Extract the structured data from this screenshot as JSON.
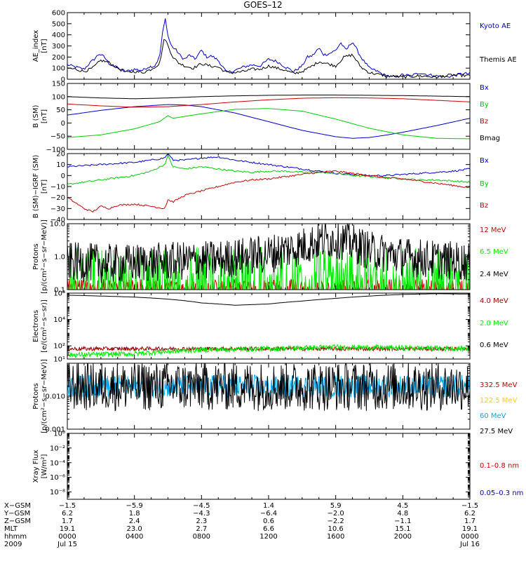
{
  "title": "GOES–12",
  "chart_data": [
    {
      "type": "line",
      "panel": "ae",
      "ylabel": [
        "AE_index",
        "[nT]"
      ],
      "ylim": [
        0,
        600
      ],
      "yscale": "linear",
      "yticks": [
        0,
        100,
        200,
        300,
        400,
        500,
        600
      ],
      "ytick_labels": [
        "0",
        "100",
        "200",
        "300",
        "400",
        "500",
        "600"
      ],
      "xlim_hours": [
        0,
        24
      ],
      "series": [
        {
          "name": "Kyoto AE",
          "color": "#0000cc",
          "x": [
            0,
            0.5,
            1,
            1.3,
            1.6,
            1.9,
            2.2,
            2.5,
            3.0,
            3.5,
            4.0,
            4.5,
            4.8,
            5.2,
            5.5,
            5.7,
            5.85,
            6.0,
            6.2,
            6.5,
            6.8,
            7.0,
            7.3,
            7.6,
            8.0,
            8.3,
            8.6,
            9.0,
            9.5,
            10.0,
            10.5,
            11.0,
            11.5,
            12.0,
            12.5,
            13.0,
            13.5,
            14.0,
            14.3,
            14.6,
            15.0,
            15.3,
            15.6,
            16.0,
            16.3,
            16.6,
            17.0,
            17.5,
            18.0,
            18.5,
            19.0,
            19.5,
            20.0,
            20.5,
            21.0,
            21.5,
            22.0,
            22.5,
            23.0,
            23.5,
            24.0
          ],
          "y": [
            130,
            110,
            90,
            140,
            180,
            230,
            200,
            140,
            100,
            70,
            90,
            80,
            110,
            120,
            200,
            440,
            550,
            390,
            300,
            260,
            200,
            180,
            220,
            180,
            260,
            200,
            210,
            170,
            60,
            80,
            110,
            130,
            120,
            180,
            160,
            110,
            70,
            120,
            200,
            210,
            280,
            220,
            230,
            260,
            330,
            260,
            340,
            200,
            100,
            70,
            30,
            20,
            40,
            30,
            60,
            40,
            30,
            20,
            30,
            50,
            50
          ]
        },
        {
          "name": "Themis AE",
          "color": "#000000",
          "x": [
            0,
            0.5,
            1,
            1.5,
            2.0,
            2.5,
            3.0,
            3.5,
            4.0,
            4.5,
            5.0,
            5.5,
            5.8,
            6.0,
            6.3,
            6.6,
            7.0,
            7.5,
            8.0,
            8.5,
            9.0,
            9.5,
            10.0,
            10.5,
            11.0,
            11.5,
            12.0,
            12.5,
            13.0,
            13.5,
            14.0,
            14.5,
            15.0,
            15.5,
            16.0,
            16.5,
            17.0,
            17.5,
            18.0,
            19.0,
            20.0,
            21.0,
            22.0,
            23.0,
            24.0
          ],
          "y": [
            100,
            90,
            70,
            100,
            170,
            150,
            100,
            60,
            70,
            60,
            90,
            140,
            380,
            300,
            200,
            150,
            120,
            100,
            140,
            120,
            110,
            60,
            60,
            70,
            90,
            90,
            120,
            100,
            80,
            50,
            70,
            110,
            160,
            140,
            120,
            200,
            220,
            110,
            60,
            30,
            20,
            30,
            20,
            40,
            30
          ]
        }
      ]
    },
    {
      "type": "line",
      "panel": "bfield",
      "ylabel": [
        "B (SM)",
        "[nT]"
      ],
      "ylim": [
        -100,
        150
      ],
      "yscale": "linear",
      "yticks": [
        -100,
        -50,
        0,
        50,
        100,
        150
      ],
      "ytick_labels": [
        "−100",
        "−50",
        "0",
        "50",
        "100",
        "150"
      ],
      "xlim_hours": [
        0,
        24
      ],
      "series": [
        {
          "name": "Bx",
          "color": "#0000cc",
          "x": [
            0,
            2,
            4,
            6,
            7,
            8,
            10,
            12,
            14,
            16,
            17,
            18,
            19,
            20,
            22,
            24
          ],
          "y": [
            30,
            48,
            62,
            70,
            68,
            62,
            38,
            5,
            -28,
            -52,
            -58,
            -55,
            -46,
            -35,
            -10,
            18
          ]
        },
        {
          "name": "By",
          "color": "#00cc00",
          "x": [
            0,
            2,
            4,
            5.5,
            6,
            6.3,
            7,
            8,
            10,
            12,
            14,
            16,
            18,
            20,
            22,
            24
          ],
          "y": [
            -55,
            -45,
            -22,
            5,
            28,
            18,
            25,
            35,
            52,
            55,
            45,
            15,
            -20,
            -45,
            -58,
            -60
          ]
        },
        {
          "name": "Bz",
          "color": "#cc0000",
          "x": [
            0,
            2,
            4,
            6,
            8,
            10,
            12,
            14,
            16,
            18,
            20,
            22,
            24
          ],
          "y": [
            72,
            65,
            60,
            62,
            70,
            80,
            88,
            94,
            96,
            95,
            92,
            86,
            80
          ]
        },
        {
          "name": "Bmag",
          "color": "#000000",
          "x": [
            0,
            2,
            4,
            6,
            8,
            10,
            12,
            14,
            16,
            18,
            20,
            22,
            24
          ],
          "y": [
            100,
            95,
            92,
            95,
            100,
            103,
            105,
            106,
            106,
            105,
            104,
            102,
            100
          ]
        }
      ]
    },
    {
      "type": "line",
      "panel": "bresid",
      "ylabel": [
        "B (SM)−IGRF (SM)",
        "[nT]"
      ],
      "ylim": [
        -40,
        20
      ],
      "yscale": "linear",
      "yticks": [
        -40,
        -30,
        -20,
        -10,
        0,
        10,
        20
      ],
      "ytick_labels": [
        "−40",
        "−30",
        "−20",
        "−10",
        "0",
        "10",
        "20"
      ],
      "xlim_hours": [
        0,
        24
      ],
      "series": [
        {
          "name": "Bx",
          "color": "#0000cc",
          "x": [
            0,
            1,
            2,
            3,
            4,
            5,
            5.8,
            6.0,
            6.3,
            7,
            8,
            9,
            10,
            11,
            12,
            13,
            14,
            15,
            16,
            17,
            18,
            19,
            20,
            21,
            22,
            23,
            24
          ],
          "y": [
            8,
            9,
            10,
            11,
            12,
            14,
            16,
            20,
            14,
            14,
            16,
            17,
            14,
            12,
            10,
            8,
            6,
            4,
            2,
            1,
            0,
            0,
            1,
            2,
            3,
            4,
            6
          ]
        },
        {
          "name": "By",
          "color": "#00cc00",
          "x": [
            0,
            1,
            2,
            3,
            4,
            5,
            5.8,
            6.0,
            6.3,
            7,
            8,
            9,
            10,
            11,
            12,
            13,
            14,
            15,
            16,
            17,
            18,
            19,
            20,
            21,
            22,
            23,
            24
          ],
          "y": [
            -8,
            -6,
            -4,
            -2,
            0,
            4,
            10,
            18,
            8,
            6,
            8,
            6,
            4,
            3,
            4,
            4,
            3,
            3,
            2,
            0,
            -1,
            -2,
            -3,
            -4,
            -4,
            -5,
            -6
          ]
        },
        {
          "name": "Bz",
          "color": "#cc0000",
          "x": [
            0,
            0.5,
            1,
            1.5,
            2,
            2.5,
            3,
            4,
            5,
            5.8,
            6.0,
            6.3,
            7,
            8,
            9,
            10,
            11,
            12,
            13,
            14,
            15,
            16,
            17,
            18,
            19,
            20,
            21,
            22,
            23,
            24
          ],
          "y": [
            -20,
            -25,
            -30,
            -33,
            -28,
            -30,
            -27,
            -26,
            -28,
            -30,
            -22,
            -24,
            -18,
            -14,
            -10,
            -6,
            -4,
            -3,
            -1,
            1,
            3,
            4,
            2,
            0,
            -2,
            -3,
            -5,
            -7,
            -9,
            -11
          ]
        }
      ]
    },
    {
      "type": "line",
      "panel": "protons1",
      "ylabel": [
        "Protons",
        "[p/(cm²−s−sr−MeV)]"
      ],
      "ylim": [
        0.1,
        10
      ],
      "yscale": "log",
      "yticks": [
        0.1,
        1.0,
        10.0
      ],
      "ytick_labels": [
        "0.1",
        "1.0",
        "10.0"
      ],
      "xlim_hours": [
        0,
        24
      ],
      "series": [
        {
          "name": "12 MeV",
          "color": "#cc0000",
          "level": 0.12,
          "spread": 0.12,
          "noise": "spiky"
        },
        {
          "name": "6.5 MeV",
          "color": "#00ee00",
          "level": 0.2,
          "spread": 0.5,
          "noise": "spiky"
        },
        {
          "name": "2.4 MeV",
          "color": "#000000",
          "level": 0.8,
          "spread": 0.6,
          "noise": "band",
          "trend_x": [
            0,
            3,
            6,
            9,
            12,
            14,
            15,
            16,
            17,
            18,
            20,
            22,
            24
          ],
          "trend_y": [
            0.7,
            0.6,
            0.7,
            0.8,
            1.2,
            2.0,
            3.0,
            3.5,
            2.5,
            1.5,
            1.0,
            0.8,
            0.7
          ]
        }
      ]
    },
    {
      "type": "line",
      "panel": "electrons",
      "ylabel": [
        "Electrons",
        "[e/(cm²−s−sr)]"
      ],
      "ylim": [
        10,
        1000000
      ],
      "yscale": "log",
      "yticks": [
        10,
        100,
        10000,
        1000000
      ],
      "ytick_labels": [
        "10¹",
        "10²",
        "10⁴",
        "10⁶"
      ],
      "xlim_hours": [
        0,
        24
      ],
      "series": [
        {
          "name": "4.0 MeV",
          "color": "#990000",
          "level": 60,
          "spread": 0.15,
          "noise": "band"
        },
        {
          "name": "2.0 MeV",
          "color": "#00ee00",
          "level": 50,
          "spread": 0.2,
          "noise": "band",
          "trend_x": [
            0,
            4,
            8,
            12,
            16,
            20,
            24
          ],
          "trend_y": [
            20,
            25,
            50,
            60,
            80,
            70,
            60
          ]
        },
        {
          "name": "0.6 MeV",
          "color": "#000000",
          "x": [
            0,
            2,
            4,
            6,
            8,
            10,
            12,
            14,
            16,
            18,
            20,
            22,
            24
          ],
          "y": [
            700000,
            600000,
            500000,
            350000,
            180000,
            120000,
            150000,
            250000,
            400000,
            600000,
            800000,
            900000,
            850000
          ]
        }
      ]
    },
    {
      "type": "line",
      "panel": "protons2",
      "ylabel": [
        "Protons",
        "[p/(cm²−s−sr−MeV)]"
      ],
      "ylim": [
        0.001,
        0.1
      ],
      "yscale": "log",
      "yticks": [
        0.001,
        0.01,
        0.1
      ],
      "ytick_labels": [
        "0.001",
        "0.010",
        ""
      ],
      "xlim_hours": [
        0,
        24
      ],
      "series": [
        {
          "name": "332.5 MeV",
          "color": "#cc0000",
          "level": null
        },
        {
          "name": "122.5 MeV",
          "color": "#ffcc00",
          "level": null
        },
        {
          "name": "60 MeV",
          "color": "#00aaee",
          "level": 0.02,
          "spread": 0.35,
          "noise": "band"
        },
        {
          "name": "27.5 MeV",
          "color": "#000000",
          "level": 0.02,
          "spread": 0.75,
          "noise": "band"
        }
      ]
    },
    {
      "type": "line",
      "panel": "xray",
      "ylabel": [
        "Xray Flux",
        "[W/m²]"
      ],
      "ylim": [
        1e-09,
        1
      ],
      "yscale": "log",
      "yticks": [
        1e-08,
        1e-06,
        0.0001,
        0.01,
        1
      ],
      "ytick_labels": [
        "10⁻⁸",
        "10⁻⁶",
        "10⁻⁴",
        "10⁻²",
        "10⁰"
      ],
      "xlim_hours": [
        0,
        24
      ],
      "series": [
        {
          "name": "0.1–0.8 nm",
          "color": "#cc0000",
          "level": null
        },
        {
          "name": "0.05–0.3 nm",
          "color": "#0000cc",
          "level": null
        }
      ]
    }
  ],
  "ephemeris": {
    "row_labels": [
      "X−GSM",
      "Y−GSM",
      "Z−GSM",
      "MLT",
      "hhmm",
      "2009"
    ],
    "columns": [
      [
        "−1.5",
        "6.2",
        "1.7",
        "19.1",
        "0000",
        "Jul 15"
      ],
      [
        "−5.9",
        "1.8",
        "2.4",
        "23.0",
        "0400",
        ""
      ],
      [
        "−4.5",
        "−4.3",
        "2.3",
        "2.7",
        "0800",
        ""
      ],
      [
        "1.4",
        "−6.4",
        "0.6",
        "6.6",
        "1200",
        ""
      ],
      [
        "5.9",
        "−2.0",
        "−2.2",
        "10.6",
        "1600",
        ""
      ],
      [
        "4.5",
        "4.8",
        "−1.1",
        "15.1",
        "2000",
        ""
      ],
      [
        "−1.5",
        "6.2",
        "1.7",
        "19.1",
        "0000",
        "Jul 16"
      ]
    ]
  }
}
